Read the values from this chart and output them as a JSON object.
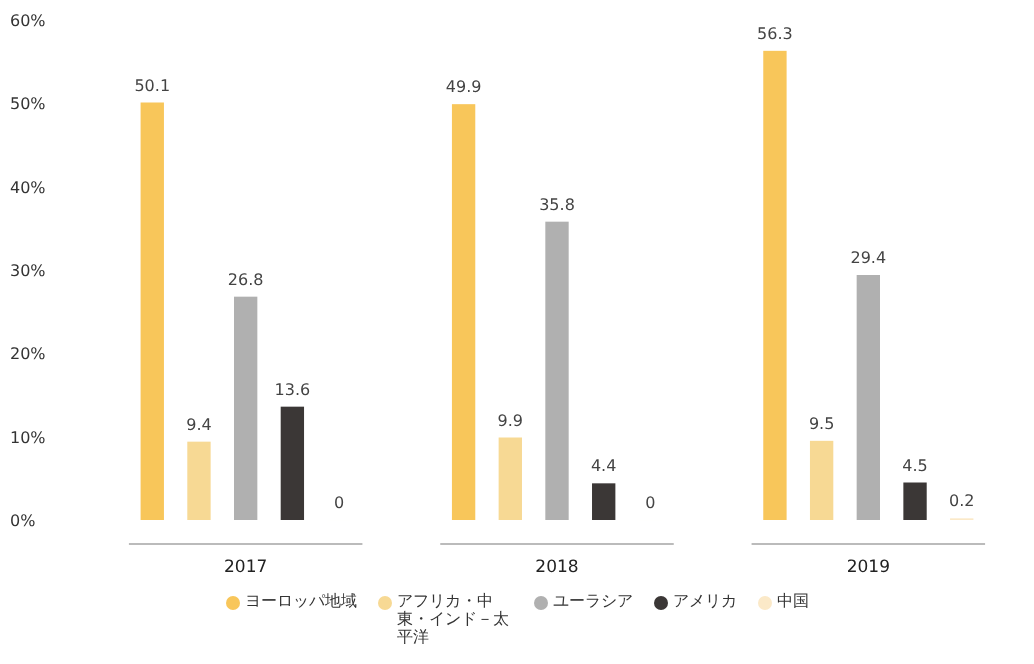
{
  "chart_data": {
    "type": "bar",
    "categories": [
      "2017",
      "2018",
      "2019"
    ],
    "series": [
      {
        "name": "ヨーロッパ地域",
        "color": "#f8c65a",
        "values": [
          50.1,
          49.9,
          56.3
        ]
      },
      {
        "name": "アフリカ・中東・インド－太平洋",
        "color": "#f7d994",
        "values": [
          9.4,
          9.9,
          9.5
        ]
      },
      {
        "name": "ユーラシア",
        "color": "#b0b0b0",
        "values": [
          26.8,
          35.8,
          29.4
        ]
      },
      {
        "name": "アメリカ",
        "color": "#3b3736",
        "values": [
          13.6,
          4.4,
          4.5
        ]
      },
      {
        "name": "中国",
        "color": "#fbe9c8",
        "values": [
          0,
          0,
          0.2
        ]
      }
    ],
    "ylim": [
      0,
      60
    ],
    "yticks": [
      {
        "value": 0,
        "label": "0%"
      },
      {
        "value": 10,
        "label": "10%"
      },
      {
        "value": 20,
        "label": "20%"
      },
      {
        "value": 30,
        "label": "30%"
      },
      {
        "value": 40,
        "label": "40%"
      },
      {
        "value": 50,
        "label": "50%"
      },
      {
        "value": 60,
        "label": "60%"
      }
    ],
    "data_labels": true,
    "grid": false,
    "legend": "bottom"
  }
}
